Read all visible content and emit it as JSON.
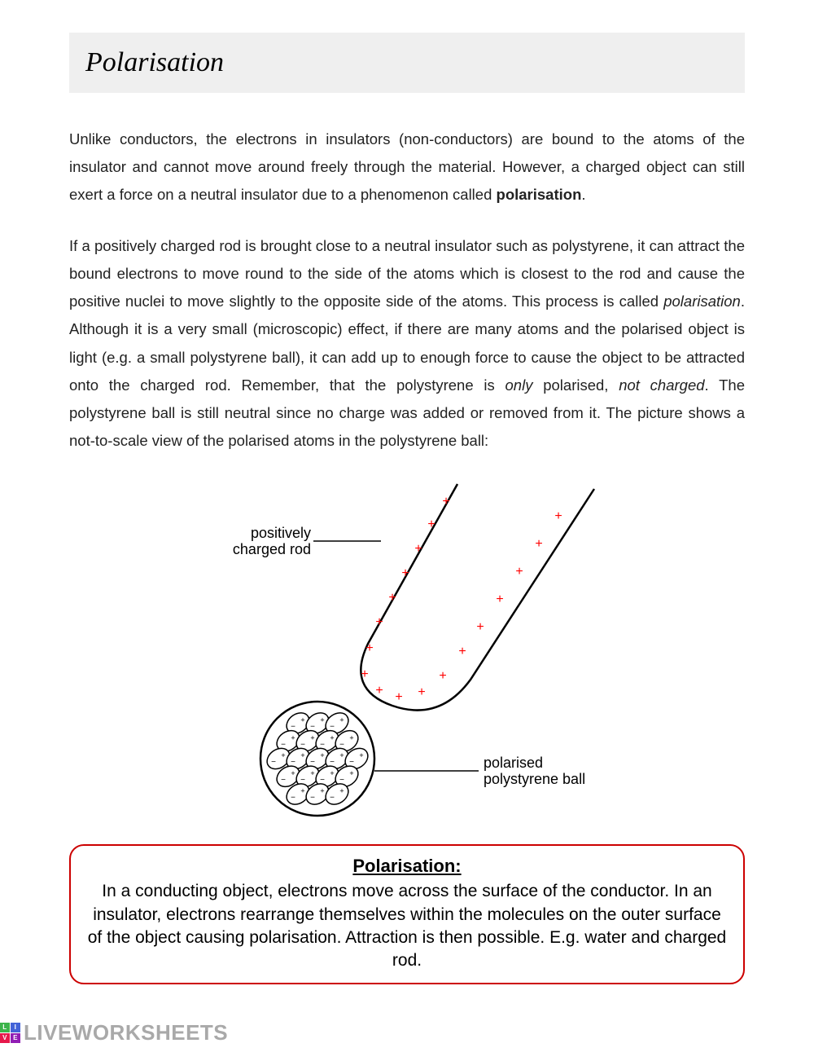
{
  "title": "Polarisation",
  "para1_parts": [
    {
      "t": "Unlike conductors, the electrons in insulators (non-conductors) are bound to the atoms of the insulator and cannot move around freely through the material. However, a charged object can still exert a force on a neutral insulator due to a phenomenon called ",
      "s": ""
    },
    {
      "t": "polarisation",
      "s": "bold"
    },
    {
      "t": ".",
      "s": ""
    }
  ],
  "para2_parts": [
    {
      "t": "If a positively charged rod is brought close to a neutral insulator such as polystyrene, it can attract the bound electrons to move round to the side of the atoms which is closest to the rod and cause the positive nuclei to move slightly to the opposite side of the atoms. This process is called ",
      "s": ""
    },
    {
      "t": "polarisation",
      "s": "ital"
    },
    {
      "t": ". Although it is a very small (microscopic) effect, if there are many atoms and the polarised object is light (e.g. a small polystyrene ball), it can add up to enough force to cause the object to be attracted onto the charged rod. Remember, that the polystyrene is ",
      "s": ""
    },
    {
      "t": "only",
      "s": "ital"
    },
    {
      "t": " polarised, ",
      "s": ""
    },
    {
      "t": "not charged",
      "s": "ital"
    },
    {
      "t": ". The polystyrene ball is still neutral since no charge was added or removed from it. The picture shows a not-to-scale view of the polarised atoms in the polystyrene ball:",
      "s": ""
    }
  ],
  "figure": {
    "label_rod": "positively\ncharged rod",
    "label_ball": "polarised\npolystyrene ball",
    "plus_color": "#ff0000",
    "stroke_color": "#000000",
    "label_fontsize": 18
  },
  "definition": {
    "title": "Polarisation:",
    "body": "In a conducting object, electrons move across the surface of the conductor. In an insulator, electrons rearrange themselves within the molecules on the outer surface of the object causing polarisation. Attraction is then possible. E.g. water and charged rod.",
    "border_color": "#cc0000"
  },
  "watermark": {
    "text": "LIVEWORKSHEETS",
    "logo_colors": [
      "#3cb44b",
      "#4363d8",
      "#e6194b",
      "#911eb4"
    ],
    "logo_letters": [
      "L",
      "I",
      "V",
      "E"
    ]
  }
}
